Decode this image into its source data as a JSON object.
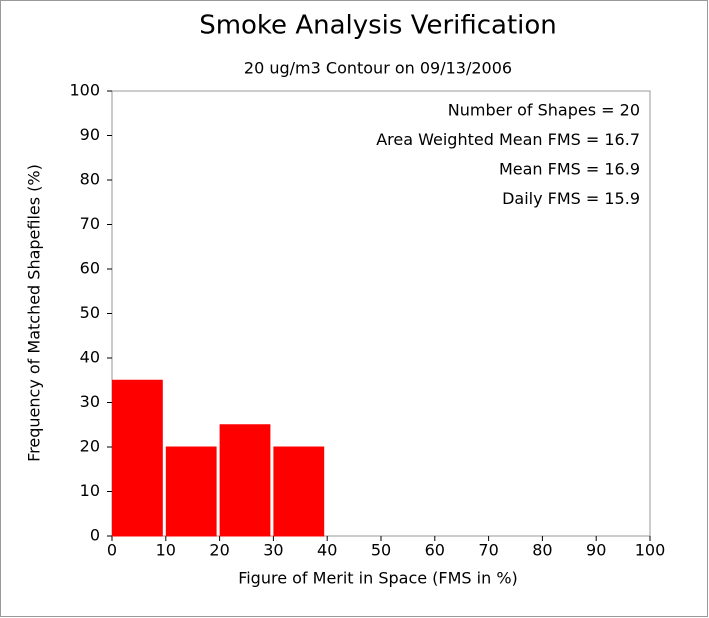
{
  "chart_data": {
    "type": "histogram",
    "title": "Smoke Analysis Verification",
    "subtitle": "20 ug/m3 Contour on 09/13/2006",
    "x_label": "Figure of Merit in Space (FMS in %)",
    "y_label": "Frequency of Matched Shapefiles (%)",
    "bins": [
      0,
      10,
      20,
      30,
      40,
      50,
      60,
      70,
      80,
      90,
      100
    ],
    "values": [
      35,
      20,
      25,
      20,
      0,
      0,
      0,
      0,
      0,
      0
    ],
    "color": "#ff0000",
    "xlim": [
      0,
      100
    ],
    "xticks": [
      0,
      10,
      20,
      30,
      40,
      50,
      60,
      70,
      80,
      90,
      100
    ],
    "ylim": [
      0,
      100
    ],
    "yticks": [
      0,
      10,
      20,
      30,
      40,
      50,
      60,
      70,
      80,
      90,
      100
    ],
    "annotations": [
      "Number of Shapes = 20",
      "Area Weighted Mean FMS = 16.7",
      "Mean FMS = 16.9",
      "Daily FMS = 15.9"
    ]
  }
}
